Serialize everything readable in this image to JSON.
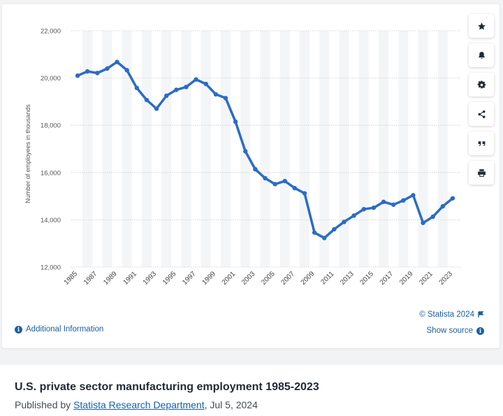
{
  "chart_data": {
    "type": "line",
    "title": "",
    "xlabel": "",
    "ylabel": "Number of employees in thousands",
    "ylim": [
      12000,
      22000
    ],
    "yticks": [
      12000,
      14000,
      16000,
      18000,
      20000,
      22000
    ],
    "ytick_labels": [
      "12,000",
      "14,000",
      "16,000",
      "18,000",
      "20,000",
      "22,000"
    ],
    "xtick_labels": [
      "1985",
      "1987",
      "1989",
      "1991",
      "1993",
      "1995",
      "1997",
      "1999",
      "2001",
      "2003",
      "2005",
      "2007",
      "2009",
      "2011",
      "2013",
      "2015",
      "2017",
      "2019",
      "2021",
      "2023"
    ],
    "x": [
      1985,
      1986,
      1987,
      1988,
      1989,
      1990,
      1991,
      1992,
      1993,
      1994,
      1995,
      1996,
      1997,
      1998,
      1999,
      2000,
      2001,
      2002,
      2003,
      2004,
      2005,
      2006,
      2007,
      2008,
      2009,
      2010,
      2011,
      2012,
      2013,
      2014,
      2015,
      2016,
      2017,
      2018,
      2019,
      2020,
      2021,
      2022,
      2023
    ],
    "series": [
      {
        "values": [
          20100,
          20280,
          20210,
          20400,
          20680,
          20330,
          19580,
          19070,
          18700,
          19250,
          19500,
          19620,
          19940,
          19750,
          19310,
          19150,
          18150,
          16900,
          16140,
          15760,
          15510,
          15640,
          15340,
          15120,
          13460,
          13230,
          13600,
          13910,
          14180,
          14450,
          14510,
          14760,
          14640,
          14820,
          15040,
          13870,
          14130,
          14570,
          14910
        ],
        "color": "#2b6cc4"
      }
    ],
    "grid": true,
    "legend": "none"
  },
  "toolbar": {
    "buttons": [
      "star-icon",
      "bell-icon",
      "gear-icon",
      "share-icon",
      "quote-icon",
      "print-icon"
    ]
  },
  "footer": {
    "credit": "© Statista 2024",
    "show_source": "Show source",
    "additional_info": "Additional Information"
  },
  "info_panel": {
    "title": "U.S. private sector manufacturing employment 1985-2023",
    "published_prefix": "Published by ",
    "publisher": "Statista Research Department",
    "published_date": ", Jul 5, 2024"
  }
}
